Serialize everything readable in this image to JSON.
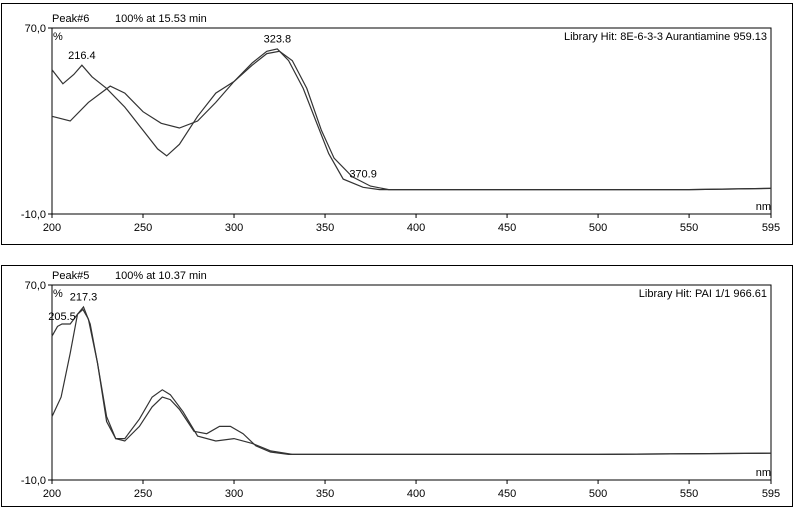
{
  "chart_data": [
    {
      "type": "line",
      "peak_title": "Peak#6",
      "peak_info": "100% at 15.53 min",
      "library_hit": "Library Hit: 8E-6-3-3 Aurantiamine 959.13",
      "y_unit": "%",
      "x_unit": "nm",
      "ylim": [
        -10,
        70
      ],
      "xlim": [
        200,
        595
      ],
      "y_tick_labels": [
        "70,0",
        "-10,0"
      ],
      "x_ticks": [
        200,
        250,
        300,
        350,
        400,
        450,
        500,
        550,
        595
      ],
      "annotations": [
        {
          "text": "216.4",
          "x": 216.4,
          "y": 55
        },
        {
          "text": "323.8",
          "x": 323.8,
          "y": 62
        },
        {
          "text": "370.9",
          "x": 370.9,
          "y": 4
        }
      ],
      "series": [
        {
          "x": [
            200,
            206,
            212,
            216.4,
            222,
            230,
            240,
            250,
            258,
            263,
            270,
            280,
            290,
            300,
            310,
            318,
            323.8,
            330,
            338,
            345,
            352,
            360,
            370.9,
            380,
            400,
            450,
            500,
            550,
            595
          ],
          "y": [
            52,
            46,
            50,
            54,
            49,
            44,
            36,
            26,
            18,
            15,
            20,
            32,
            42,
            47,
            55,
            60,
            61,
            56,
            44,
            30,
            16,
            5,
            1.5,
            0.5,
            0.5,
            0.5,
            0.5,
            0.5,
            1
          ]
        },
        {
          "x": [
            200,
            210,
            220,
            232,
            240,
            250,
            260,
            270,
            280,
            290,
            300,
            310,
            318,
            325,
            332,
            340,
            348,
            355,
            365,
            375,
            385,
            400,
            450,
            500,
            550,
            595
          ],
          "y": [
            32,
            30,
            38,
            45,
            42,
            34,
            29,
            27,
            30,
            38,
            47,
            54,
            59,
            60,
            56,
            44,
            26,
            14,
            6,
            2,
            0.5,
            0.5,
            0.5,
            0.5,
            0.5,
            1
          ]
        }
      ]
    },
    {
      "type": "line",
      "peak_title": "Peak#5",
      "peak_info": "100% at 10.37 min",
      "library_hit": "Library Hit: PAI 1/1 966.61",
      "y_unit": "%",
      "x_unit": "nm",
      "ylim": [
        -10,
        70
      ],
      "xlim": [
        200,
        595
      ],
      "y_tick_labels": [
        "70,0",
        "-10,0"
      ],
      "x_ticks": [
        200,
        250,
        300,
        350,
        400,
        450,
        500,
        550,
        595
      ],
      "annotations": [
        {
          "text": "205.5",
          "x": 205.5,
          "y": 54
        },
        {
          "text": "217.3",
          "x": 217.3,
          "y": 62
        }
      ],
      "series": [
        {
          "x": [
            200,
            203,
            205.5,
            210,
            214,
            217,
            220,
            225,
            230,
            235,
            240,
            248,
            255,
            260.6,
            265,
            270,
            278,
            285,
            292,
            298,
            305,
            312,
            320,
            330,
            350,
            400,
            500,
            595
          ],
          "y": [
            49,
            53,
            54,
            54,
            58,
            60,
            56,
            38,
            14,
            7,
            6,
            12,
            20,
            24,
            23,
            19,
            10,
            9,
            12,
            12,
            9,
            4,
            1.5,
            0.5,
            0.5,
            0.5,
            0.5,
            1
          ]
        },
        {
          "x": [
            200,
            205,
            210,
            214,
            217.3,
            221,
            225,
            230,
            235,
            240,
            248,
            255,
            260.6,
            265,
            272,
            280,
            290,
            300,
            310,
            320,
            332,
            350,
            400,
            500,
            595
          ],
          "y": [
            16,
            24,
            42,
            58,
            61,
            54,
            38,
            16,
            7,
            7,
            15,
            24,
            27,
            25,
            18,
            8,
            6,
            7,
            5,
            2,
            0.5,
            0.5,
            0.5,
            0.5,
            1
          ]
        }
      ]
    }
  ]
}
